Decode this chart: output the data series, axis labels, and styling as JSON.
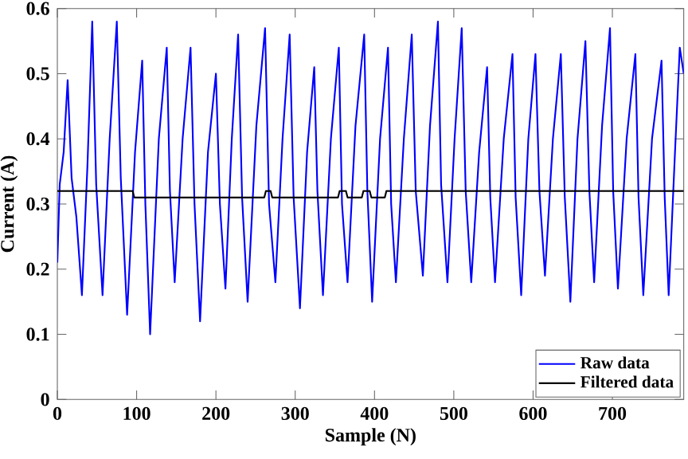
{
  "chart_data": {
    "type": "line",
    "xlabel": "Sample (N)",
    "ylabel": "Current (A)",
    "xlim": [
      0,
      790
    ],
    "ylim": [
      0,
      0.6
    ],
    "xticks": [
      0,
      100,
      200,
      300,
      400,
      500,
      600,
      700
    ],
    "yticks": [
      0,
      0.1,
      0.2,
      0.3,
      0.4,
      0.5,
      0.6
    ],
    "grid": false,
    "legend": "bottom right",
    "marker": "none",
    "line_style": "solid",
    "series": [
      {
        "name": "Raw data",
        "color": "#0000ff",
        "x": [
          0,
          3,
          8,
          13,
          18,
          24,
          31,
          38,
          44,
          49,
          57,
          66,
          75,
          80,
          88,
          98,
          107,
          111,
          117,
          128,
          138,
          142,
          148,
          158,
          168,
          173,
          180,
          190,
          200,
          205,
          212,
          220,
          228,
          233,
          240,
          251,
          262,
          267,
          275,
          284,
          293,
          298,
          306,
          315,
          324,
          328,
          335,
          345,
          355,
          359,
          366,
          376,
          387,
          391,
          397,
          407,
          417,
          421,
          427,
          437,
          447,
          452,
          461,
          470,
          480,
          484,
          492,
          501,
          510,
          515,
          522,
          532,
          542,
          546,
          552,
          563,
          574,
          578,
          585,
          594,
          603,
          608,
          615,
          625,
          635,
          640,
          647,
          656,
          666,
          671,
          677,
          687,
          697,
          701,
          707,
          718,
          729,
          733,
          739,
          750,
          762,
          766,
          771,
          779,
          785,
          790
        ],
        "values": [
          0.21,
          0.33,
          0.38,
          0.49,
          0.34,
          0.28,
          0.16,
          0.36,
          0.58,
          0.33,
          0.16,
          0.4,
          0.58,
          0.34,
          0.13,
          0.38,
          0.52,
          0.3,
          0.1,
          0.4,
          0.54,
          0.32,
          0.18,
          0.4,
          0.54,
          0.3,
          0.12,
          0.38,
          0.5,
          0.3,
          0.17,
          0.4,
          0.56,
          0.31,
          0.15,
          0.42,
          0.57,
          0.3,
          0.18,
          0.4,
          0.56,
          0.31,
          0.14,
          0.38,
          0.51,
          0.32,
          0.16,
          0.4,
          0.54,
          0.3,
          0.18,
          0.42,
          0.56,
          0.32,
          0.15,
          0.4,
          0.54,
          0.3,
          0.18,
          0.4,
          0.56,
          0.32,
          0.19,
          0.42,
          0.58,
          0.33,
          0.18,
          0.4,
          0.57,
          0.32,
          0.18,
          0.38,
          0.51,
          0.31,
          0.18,
          0.4,
          0.53,
          0.31,
          0.16,
          0.4,
          0.53,
          0.32,
          0.19,
          0.4,
          0.53,
          0.31,
          0.15,
          0.4,
          0.55,
          0.32,
          0.18,
          0.42,
          0.57,
          0.32,
          0.17,
          0.4,
          0.53,
          0.31,
          0.16,
          0.4,
          0.52,
          0.31,
          0.16,
          0.38,
          0.54,
          0.5
        ]
      },
      {
        "name": "Filtered data",
        "color": "#000000",
        "x": [
          0,
          95,
          97,
          261,
          263,
          269,
          271,
          354,
          356,
          364,
          366,
          384,
          386,
          394,
          396,
          413,
          415,
          790
        ],
        "values": [
          0.32,
          0.32,
          0.31,
          0.31,
          0.32,
          0.32,
          0.31,
          0.31,
          0.32,
          0.32,
          0.31,
          0.31,
          0.32,
          0.32,
          0.31,
          0.31,
          0.32,
          0.32
        ]
      }
    ]
  }
}
